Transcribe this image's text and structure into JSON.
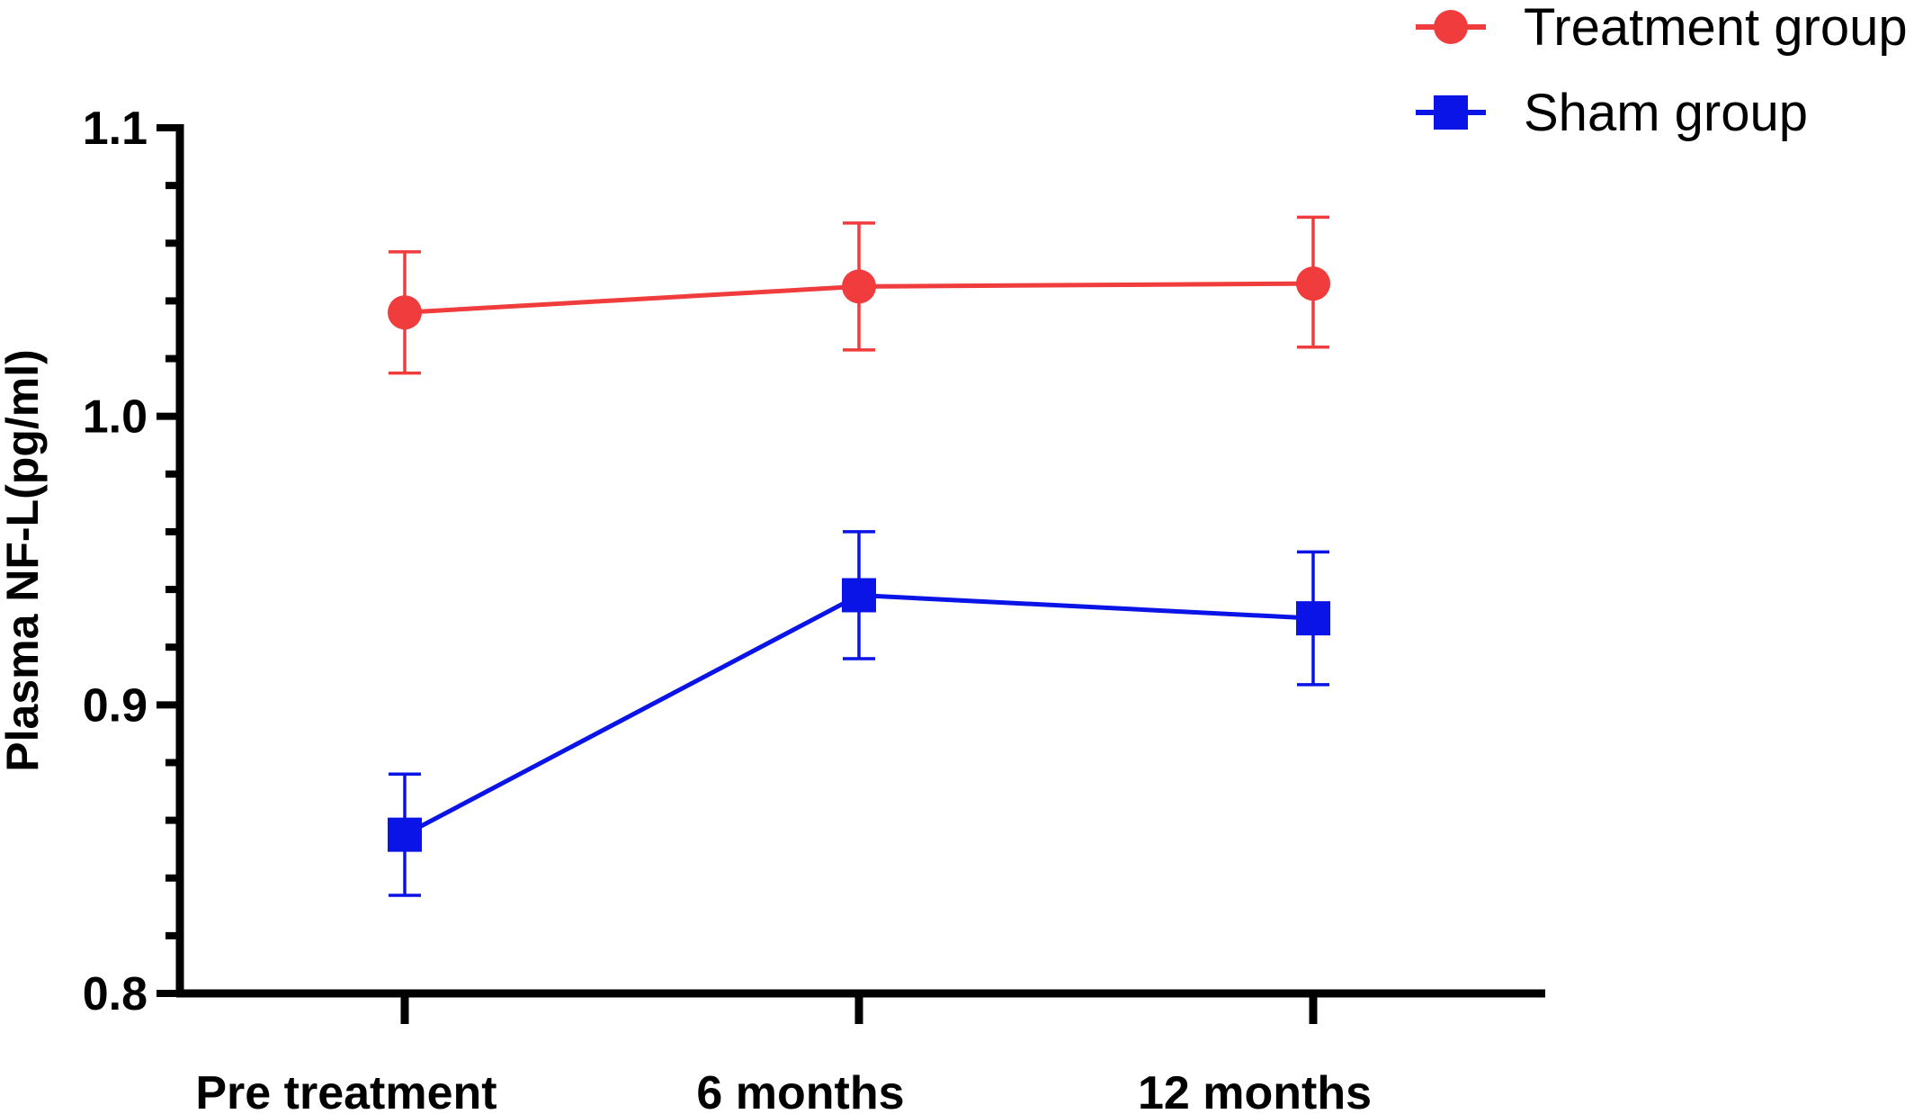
{
  "chart_data": {
    "type": "line",
    "title": "",
    "xlabel": "",
    "ylabel": "Plasma NF-L(pg/ml)",
    "categories": [
      "Pre treatment",
      "6 months",
      "12 months"
    ],
    "ylim": [
      0.8,
      1.1
    ],
    "yticks": [
      0.8,
      0.9,
      1.0,
      1.1
    ],
    "ytick_labels": [
      "0.8",
      "0.9",
      "1.0",
      "1.1"
    ],
    "y_minor_step": 0.02,
    "grid": false,
    "legend_position": "top-right",
    "series": [
      {
        "name": "Treatment group",
        "marker": "circle",
        "color": "#f03c3c",
        "values": [
          1.036,
          1.045,
          1.046
        ],
        "err_low": [
          1.015,
          1.023,
          1.024
        ],
        "err_high": [
          1.057,
          1.067,
          1.069
        ]
      },
      {
        "name": "Sham group",
        "marker": "square",
        "color": "#0a14e6",
        "values": [
          0.855,
          0.938,
          0.93
        ],
        "err_low": [
          0.834,
          0.916,
          0.907
        ],
        "err_high": [
          0.876,
          0.96,
          0.953
        ]
      }
    ]
  }
}
